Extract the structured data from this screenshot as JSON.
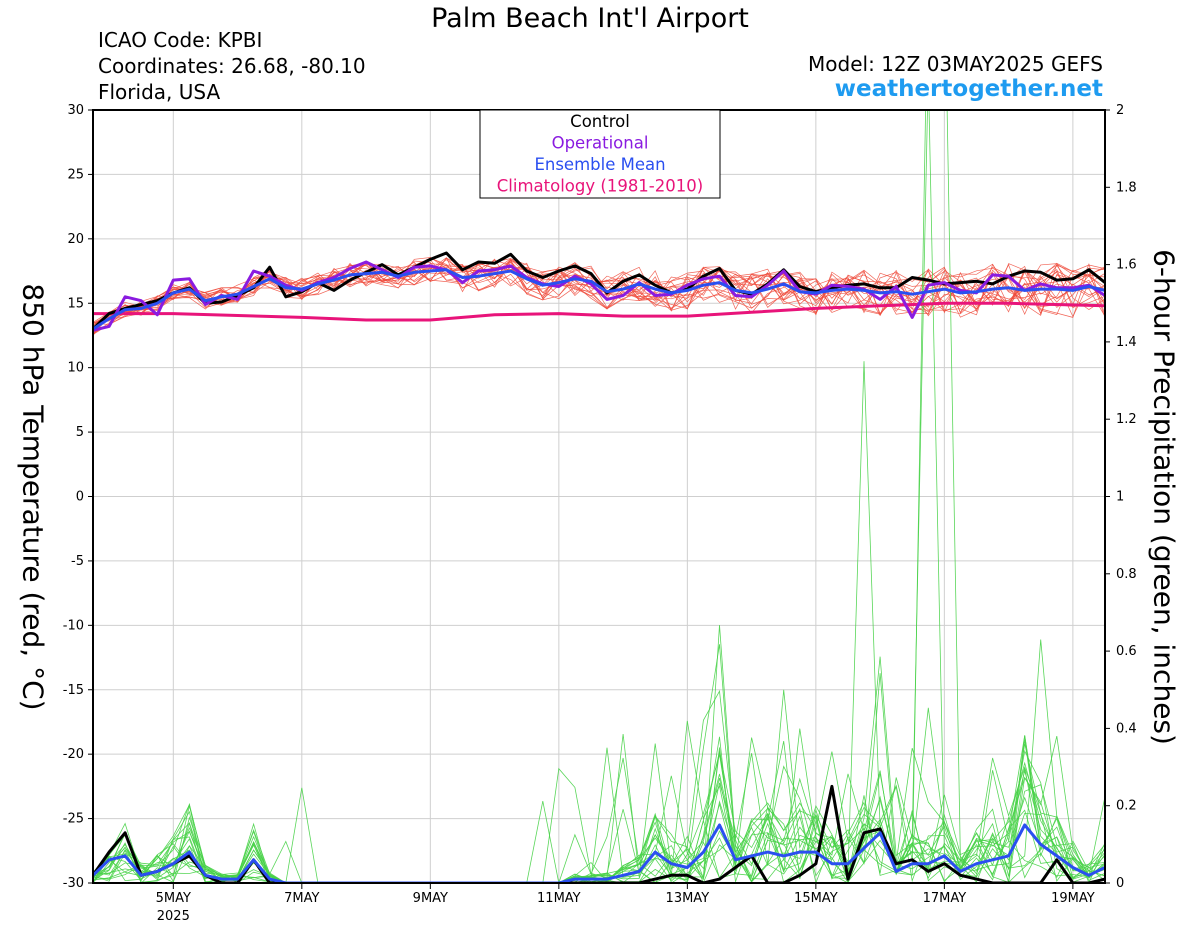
{
  "header": {
    "title": "Palm Beach Int'l Airport",
    "icao": "ICAO Code: KPBI",
    "coordinates": "Coordinates: 26.68, -80.10",
    "region": "Florida, USA",
    "model": "Model: 12Z 03MAY2025 GEFS",
    "site": "weathertogether.net"
  },
  "colors": {
    "control": "#000000",
    "operational": "#8a1be0",
    "ensemble_mean": "#2a4ff0",
    "climatology": "#e8147a",
    "members_temp": "#ee4b3c",
    "members_precip": "#47d247"
  },
  "chart_data": {
    "type": "line",
    "title": "Palm Beach Int'l Airport",
    "ylabel": "850 hPa Temperature (red, °C)",
    "y2label": "6-hour Precipitation (green, inches)",
    "ylim": [
      -30,
      30
    ],
    "y2lim": [
      0,
      2
    ],
    "yticks": [
      "30",
      "25",
      "20",
      "15",
      "10",
      "5",
      "0",
      "-5",
      "-10",
      "-15",
      "-20",
      "-25",
      "-30"
    ],
    "y2ticks": [
      "2",
      "1.8",
      "1.6",
      "1.4",
      "1.2",
      "1",
      "0.8",
      "0.6",
      "0.4",
      "0.2",
      "0"
    ],
    "x_range": [
      "2025-05-03T18",
      "2025-05-19T12"
    ],
    "x_step_hours": 6,
    "xticks": [
      {
        "date": "2025-05-05",
        "label": "5MAY",
        "sub": "2025"
      },
      {
        "date": "2025-05-07",
        "label": "7MAY",
        "sub": ""
      },
      {
        "date": "2025-05-09",
        "label": "9MAY",
        "sub": ""
      },
      {
        "date": "2025-05-11",
        "label": "11MAY",
        "sub": ""
      },
      {
        "date": "2025-05-13",
        "label": "13MAY",
        "sub": ""
      },
      {
        "date": "2025-05-15",
        "label": "15MAY",
        "sub": ""
      },
      {
        "date": "2025-05-17",
        "label": "17MAY",
        "sub": ""
      },
      {
        "date": "2025-05-19",
        "label": "19MAY",
        "sub": ""
      }
    ],
    "legend": {
      "placement": "top-center",
      "entries": [
        "Control",
        "Operational",
        "Ensemble Mean",
        "Climatology (1981-2010)"
      ]
    },
    "series": [
      {
        "name": "Control",
        "axis": "left",
        "values": [
          13.0,
          14.2,
          14.6,
          14.9,
          15.2,
          15.8,
          16.2,
          15.0,
          15.1,
          15.6,
          16.2,
          17.8,
          15.5,
          15.9,
          16.6,
          16.0,
          16.8,
          17.4,
          18.0,
          17.2,
          17.8,
          18.4,
          18.9,
          17.6,
          18.2,
          18.1,
          18.8,
          17.5,
          17.0,
          17.5,
          17.9,
          17.3,
          15.8,
          16.7,
          17.2,
          16.4,
          15.8,
          16.1,
          17.1,
          17.7,
          16.0,
          15.7,
          16.5,
          17.6,
          16.3,
          15.9,
          16.2,
          16.4,
          16.5,
          16.2,
          16.2,
          17.0,
          16.8,
          16.5,
          16.6,
          16.7,
          16.5,
          17.1,
          17.5,
          17.4,
          16.8,
          16.9,
          17.6,
          16.6,
          16.8,
          17.4,
          18.2,
          16.6,
          17.5,
          17.1,
          17.3,
          17.0,
          17.5
        ]
      },
      {
        "name": "Operational",
        "axis": "left",
        "values": [
          12.9,
          13.2,
          15.5,
          15.2,
          14.1,
          16.8,
          16.9,
          14.9,
          15.6,
          15.3,
          17.5,
          17.1,
          16.4,
          16.0,
          16.6,
          17.0,
          17.7,
          18.2,
          17.6,
          17.0,
          17.8,
          17.9,
          17.6,
          16.6,
          17.5,
          17.6,
          17.9,
          17.0,
          16.5,
          16.3,
          17.1,
          16.5,
          15.3,
          15.6,
          16.6,
          15.6,
          15.7,
          16.4,
          16.9,
          17.1,
          15.6,
          15.5,
          16.4,
          17.5,
          15.9,
          15.7,
          16.4,
          16.3,
          16.1,
          15.3,
          16.3,
          13.9,
          16.4,
          16.6,
          16.0,
          15.8,
          17.2,
          17.1,
          16.0,
          16.5,
          16.2,
          16.2,
          16.4,
          15.6,
          15.1,
          16.2,
          16.7,
          16.2,
          15.1,
          15.9,
          16.4,
          15.8,
          15.5
        ]
      },
      {
        "name": "Ensemble Mean",
        "axis": "left",
        "values": [
          13.0,
          13.8,
          14.5,
          14.6,
          15.0,
          15.8,
          16.1,
          15.2,
          15.5,
          15.7,
          16.3,
          16.9,
          16.2,
          16.1,
          16.5,
          16.8,
          17.2,
          17.3,
          17.4,
          17.1,
          17.4,
          17.5,
          17.6,
          17.0,
          17.1,
          17.3,
          17.5,
          16.9,
          16.4,
          16.6,
          16.9,
          16.7,
          15.9,
          16.1,
          16.5,
          16.1,
          15.8,
          16.0,
          16.4,
          16.6,
          16.0,
          15.8,
          16.1,
          16.5,
          15.9,
          15.8,
          16.0,
          16.1,
          16.0,
          15.8,
          15.9,
          15.7,
          15.9,
          16.1,
          15.8,
          15.9,
          16.1,
          16.2,
          16.0,
          16.1,
          16.1,
          16.0,
          16.3,
          16.0,
          15.9,
          16.2,
          16.5,
          16.1,
          16.3,
          16.3,
          16.4,
          16.3,
          16.1
        ]
      },
      {
        "name": "Climatology (1981-2010)",
        "axis": "left",
        "x": [
          "2025-05-03T18",
          "2025-05-05T00",
          "2025-05-07T00",
          "2025-05-08T00",
          "2025-05-09T00",
          "2025-05-10T00",
          "2025-05-11T00",
          "2025-05-12T00",
          "2025-05-13T00",
          "2025-05-14T00",
          "2025-05-15T00",
          "2025-05-16T00",
          "2025-05-17T00",
          "2025-05-18T00",
          "2025-05-19T12"
        ],
        "values": [
          14.2,
          14.2,
          13.9,
          13.7,
          13.7,
          14.1,
          14.2,
          14.0,
          14.0,
          14.3,
          14.6,
          14.8,
          15.0,
          15.0,
          14.8
        ]
      },
      {
        "name": "Control",
        "axis": "right",
        "values": [
          0.02,
          0.08,
          0.13,
          0.02,
          0.03,
          0.05,
          0.07,
          0.02,
          0.0,
          0.0,
          0.06,
          0.0,
          0.0,
          0.0,
          0.0,
          0.0,
          0.0,
          0.0,
          0.0,
          0.0,
          0.0,
          0.0,
          0.0,
          0.0,
          0.0,
          0.0,
          0.0,
          0.0,
          0.0,
          0.0,
          0.0,
          0.0,
          0.0,
          0.0,
          0.0,
          0.01,
          0.02,
          0.02,
          0.0,
          0.01,
          0.04,
          0.07,
          0.0,
          0.0,
          0.02,
          0.05,
          0.25,
          0.01,
          0.13,
          0.14,
          0.05,
          0.06,
          0.03,
          0.05,
          0.02,
          0.01,
          0.0,
          0.0,
          0.0,
          0.0,
          0.06,
          0.0,
          0.0,
          0.01,
          0.0,
          0.0,
          0.02,
          0.01,
          0.01,
          0.07,
          0.04,
          0.02,
          0.05,
          0.13,
          0.1
        ]
      },
      {
        "name": "Ensemble Mean",
        "axis": "right",
        "values": [
          0.02,
          0.06,
          0.07,
          0.02,
          0.03,
          0.05,
          0.08,
          0.02,
          0.01,
          0.01,
          0.06,
          0.01,
          0.0,
          0.0,
          0.0,
          0.0,
          0.0,
          0.0,
          0.0,
          0.0,
          0.0,
          0.0,
          0.0,
          0.0,
          0.0,
          0.0,
          0.0,
          0.0,
          0.0,
          0.0,
          0.01,
          0.01,
          0.01,
          0.02,
          0.03,
          0.08,
          0.05,
          0.04,
          0.08,
          0.15,
          0.06,
          0.07,
          0.08,
          0.07,
          0.08,
          0.08,
          0.05,
          0.05,
          0.09,
          0.13,
          0.03,
          0.05,
          0.05,
          0.07,
          0.03,
          0.05,
          0.06,
          0.07,
          0.15,
          0.1,
          0.07,
          0.04,
          0.02,
          0.04,
          0.02,
          0.02,
          0.03,
          0.03,
          0.02,
          0.03,
          0.03,
          0.06,
          0.04,
          0.03
        ]
      },
      {
        "name": "Operational",
        "axis": "right",
        "values": [
          0.0,
          0.0,
          0.0,
          0.0,
          0.0,
          0.0,
          0.0,
          0.0,
          0.0,
          0.0,
          0.0,
          0.0,
          0.0,
          0.0,
          0.0,
          0.0,
          0.0,
          0.0,
          0.0,
          0.0,
          0.0,
          0.0,
          0.0,
          0.0,
          0.0,
          0.0,
          0.0,
          0.0,
          0.0,
          0.0,
          0.0,
          0.0,
          0.0,
          0.0,
          0.0,
          0.0,
          0.0,
          0.0,
          0.0,
          0.0,
          0.0,
          0.0,
          0.0,
          0.0,
          0.0,
          0.0,
          0.0,
          0.0,
          0.0,
          0.0,
          0.0,
          0.0,
          0.0,
          0.0,
          0.0,
          0.0,
          0.0,
          0.0,
          0.0,
          0.0,
          0.0,
          0.0,
          0.0,
          0.0,
          0.0,
          0.0,
          0.0,
          0.0,
          0.0,
          0.0,
          0.0,
          0.0,
          0.0
        ]
      }
    ]
  }
}
